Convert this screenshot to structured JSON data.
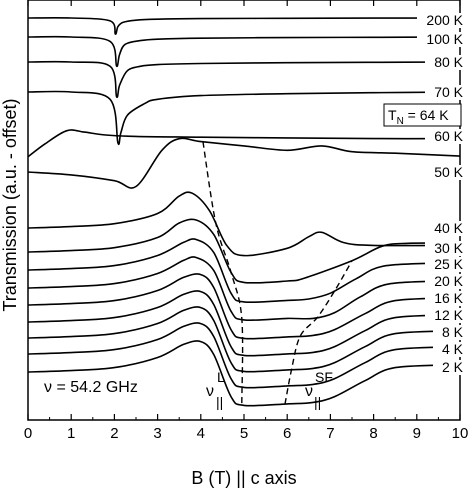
{
  "chart_data": {
    "type": "line",
    "title": "",
    "xlabel": "B (T) || c axis",
    "ylabel": "Transmission (a.u. - offset)",
    "xlim": [
      0,
      10
    ],
    "xticks": [
      "0",
      "1",
      "2",
      "3",
      "4",
      "5",
      "6",
      "7",
      "8",
      "9",
      "10"
    ],
    "grid": false,
    "series": [
      {
        "name": "200 K",
        "x": [
          0,
          1,
          1.9,
          2.02,
          2.08,
          2.2,
          2.5,
          3,
          4,
          6,
          8,
          10
        ],
        "y": [
          0.0,
          0.0,
          -0.2,
          -1.1,
          -0.6,
          -0.3,
          -0.15,
          -0.08,
          -0.04,
          -0.02,
          -0.01,
          0.0
        ]
      },
      {
        "name": "100 K",
        "x": [
          0,
          1,
          1.9,
          2.05,
          2.12,
          2.25,
          2.6,
          3,
          4,
          6,
          8,
          10
        ],
        "y": [
          0.0,
          0.0,
          -0.3,
          -2.0,
          -1.2,
          -0.5,
          -0.25,
          -0.15,
          -0.08,
          -0.04,
          -0.02,
          0.0
        ]
      },
      {
        "name": "80 K",
        "x": [
          0,
          1,
          1.9,
          2.05,
          2.12,
          2.3,
          2.6,
          3,
          4,
          6,
          8,
          10
        ],
        "y": [
          0.0,
          0.0,
          -0.3,
          -2.4,
          -1.6,
          -0.6,
          -0.3,
          -0.18,
          -0.1,
          -0.05,
          -0.02,
          0.0
        ]
      },
      {
        "name": "70 K",
        "x": [
          0,
          1,
          1.9,
          2.08,
          2.15,
          2.3,
          2.7,
          3,
          4,
          6,
          8,
          10
        ],
        "y": [
          0.0,
          0.0,
          -0.5,
          -3.5,
          -2.8,
          -1.6,
          -0.8,
          -0.5,
          -0.25,
          -0.12,
          -0.05,
          0.0
        ]
      },
      {
        "name": "60 K",
        "x": [
          0,
          0.4,
          0.9,
          1.3,
          1.8,
          2.5,
          4,
          6,
          8,
          10
        ],
        "y": [
          -1.5,
          -0.6,
          0.3,
          0.2,
          0.0,
          -0.1,
          -0.15,
          -0.2,
          -0.25,
          -0.25
        ]
      },
      {
        "name": "50 K",
        "x": [
          0,
          1,
          2,
          2.5,
          3.1,
          3.5,
          4,
          5,
          6,
          6.8,
          7.5,
          8.5,
          10
        ],
        "y": [
          0.0,
          -0.2,
          -0.6,
          -1.0,
          1.5,
          2.3,
          2.1,
          1.8,
          1.5,
          1.8,
          1.4,
          1.3,
          1.1
        ]
      },
      {
        "name": "40 K",
        "x": [
          0,
          1,
          2,
          3,
          3.5,
          3.8,
          4.2,
          4.6,
          5.0,
          6.0,
          6.5,
          6.8,
          7.3,
          8,
          10
        ],
        "y": [
          0.0,
          0.1,
          0.3,
          1.0,
          2.2,
          2.4,
          1.2,
          -1.2,
          -1.9,
          -1.4,
          -0.6,
          -0.3,
          -1.0,
          -1.2,
          -1.2
        ]
      },
      {
        "name": "30 K",
        "x": [
          0,
          1,
          2,
          3,
          3.5,
          3.9,
          4.3,
          4.7,
          5.0,
          6.0,
          6.4,
          7.5,
          8.2,
          8.8,
          10
        ],
        "y": [
          0.0,
          0.1,
          0.3,
          1.0,
          2.0,
          2.2,
          1.2,
          -1.4,
          -2.1,
          -2.0,
          -1.8,
          -0.6,
          0.4,
          0.6,
          0.6
        ]
      },
      {
        "name": "25 K",
        "x": [
          0,
          1,
          2,
          3,
          3.6,
          3.9,
          4.3,
          4.7,
          5.0,
          6.0,
          6.5,
          7.0,
          7.6,
          8.3,
          10
        ],
        "y": [
          0.0,
          0.1,
          0.3,
          1.0,
          1.9,
          2.1,
          1.2,
          -1.6,
          -2.2,
          -2.1,
          -2.0,
          -1.6,
          -0.6,
          0.3,
          0.5
        ]
      },
      {
        "name": "20 K",
        "x": [
          0,
          1,
          2,
          3,
          3.6,
          3.9,
          4.3,
          4.7,
          5.0,
          6.0,
          6.6,
          7.1,
          7.7,
          8.4,
          10
        ],
        "y": [
          0.0,
          0.1,
          0.3,
          1.0,
          1.9,
          2.1,
          1.2,
          -1.6,
          -2.2,
          -2.1,
          -2.1,
          -1.7,
          -0.6,
          0.3,
          0.5
        ]
      },
      {
        "name": "16 K",
        "x": [
          0,
          1,
          2,
          3,
          3.6,
          4.0,
          4.3,
          4.7,
          5.0,
          6.0,
          6.6,
          7.1,
          7.8,
          8.5,
          10
        ],
        "y": [
          0.0,
          0.1,
          0.3,
          1.0,
          1.9,
          2.1,
          1.2,
          -1.7,
          -2.3,
          -2.2,
          -2.1,
          -1.7,
          -0.6,
          0.3,
          0.5
        ]
      },
      {
        "name": "12 K",
        "x": [
          0,
          1,
          2,
          3,
          3.6,
          4.0,
          4.3,
          4.7,
          5.0,
          6.0,
          6.6,
          7.1,
          7.8,
          8.5,
          10
        ],
        "y": [
          0.0,
          0.1,
          0.3,
          1.0,
          1.9,
          2.1,
          1.2,
          -1.7,
          -2.3,
          -2.2,
          -2.1,
          -1.7,
          -0.6,
          0.3,
          0.5
        ]
      },
      {
        "name": "8 K",
        "x": [
          0,
          1,
          2,
          3,
          3.6,
          4.0,
          4.3,
          4.7,
          5.0,
          6.0,
          6.6,
          7.1,
          7.8,
          8.5,
          10
        ],
        "y": [
          0.0,
          0.1,
          0.3,
          1.0,
          1.9,
          2.1,
          1.2,
          -1.7,
          -2.3,
          -2.2,
          -2.1,
          -1.7,
          -0.6,
          0.3,
          0.5
        ]
      },
      {
        "name": "4 K",
        "x": [
          0,
          1,
          2,
          3,
          3.6,
          4.0,
          4.3,
          4.7,
          5.0,
          6.0,
          6.6,
          7.1,
          7.8,
          8.5,
          10
        ],
        "y": [
          0.0,
          0.1,
          0.3,
          1.0,
          1.9,
          2.1,
          1.2,
          -1.7,
          -2.3,
          -2.2,
          -2.1,
          -1.7,
          -0.6,
          0.3,
          0.5
        ]
      },
      {
        "name": "2 K",
        "x": [
          0,
          1,
          2,
          3,
          3.6,
          4.0,
          4.3,
          4.7,
          5.0,
          6.0,
          6.6,
          7.1,
          7.8,
          8.5,
          10
        ],
        "y": [
          0.0,
          0.1,
          0.3,
          1.0,
          1.9,
          2.1,
          1.2,
          -1.7,
          -2.3,
          -2.2,
          -2.1,
          -1.7,
          -0.6,
          0.3,
          0.5
        ]
      }
    ],
    "guides": [
      {
        "label_main": "ν",
        "label_sup": "L",
        "label_sub": "||",
        "x": [
          4.05,
          4.35,
          4.7,
          4.95,
          4.95
        ],
        "at_series": [
          5,
          6,
          7,
          9,
          14
        ]
      },
      {
        "label_main": "ν",
        "label_sup": "SF",
        "label_sub": "||",
        "x": [
          5.95,
          6.1,
          6.3,
          6.7,
          7.1,
          7.5
        ],
        "at_series": [
          14,
          12,
          10,
          9,
          8,
          7
        ]
      }
    ],
    "annotations": {
      "frequency": "ν = 54.2 GHz",
      "neel": "T_N = 64 K",
      "neel_main": "T",
      "neel_sub": "N",
      "neel_value": " = 64 K",
      "guide_left_main": "ν",
      "guide_left_sup": "L",
      "guide_left_sub": "||",
      "guide_right_main": "ν",
      "guide_right_sup": "SF",
      "guide_right_sub": "||"
    }
  }
}
